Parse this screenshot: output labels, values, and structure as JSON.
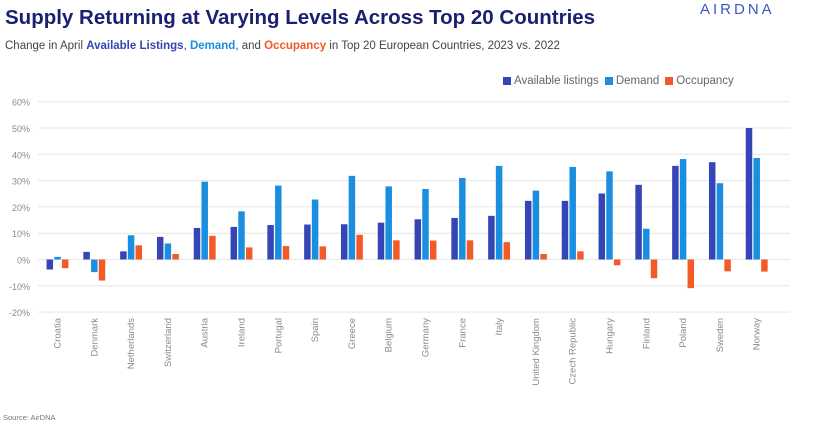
{
  "header": {
    "title": "Supply Returning at Varying Levels Across Top 20 Countries",
    "brand": "AIRDNA",
    "subtitle_prefix": "Change in April ",
    "subtitle_listings": "Available Listings",
    "subtitle_sep1": ", ",
    "subtitle_demand": "Demand",
    "subtitle_sep2": ", and ",
    "subtitle_occupancy": "Occupancy",
    "subtitle_suffix": " in Top 20 European Countries, 2023 vs. 2022"
  },
  "legend": {
    "listings": "Available listings",
    "demand": "Demand",
    "occupancy": "Occupancy"
  },
  "source": "Source: AirDNA",
  "colors": {
    "listings": "#3645b5",
    "demand": "#1a8fe0",
    "occupancy": "#f45a28",
    "title": "#1a1f71",
    "grid": "#e6e6e6"
  },
  "chart_data": {
    "type": "bar",
    "ylim": [
      -20,
      60
    ],
    "yticks": [
      "-20%",
      "-10%",
      "0%",
      "10%",
      "20%",
      "30%",
      "40%",
      "50%",
      "60%"
    ],
    "legend_position": "top-right",
    "grid": true,
    "categories": [
      "Croatia",
      "Denmark",
      "Netherlands",
      "Switzerland",
      "Austria",
      "Ireland",
      "Portugal",
      "Spain",
      "Greece",
      "Belgium",
      "Germany",
      "France",
      "Italy",
      "United Kingdom",
      "Czech Republic",
      "Hungary",
      "Finland",
      "Poland",
      "Sweden",
      "Norway"
    ],
    "series": [
      {
        "name": "Available listings",
        "values": [
          -3.8,
          2.9,
          3.1,
          8.6,
          12.0,
          12.4,
          13.1,
          13.3,
          13.4,
          14.0,
          15.3,
          15.8,
          16.6,
          22.3,
          22.3,
          25.1,
          28.4,
          35.6,
          37.0,
          50.0
        ]
      },
      {
        "name": "Demand",
        "values": [
          1.0,
          -4.8,
          9.2,
          6.1,
          29.6,
          18.3,
          28.1,
          22.8,
          31.8,
          27.8,
          26.8,
          31.0,
          35.6,
          26.2,
          35.2,
          33.5,
          11.7,
          38.2,
          29.0,
          38.6
        ]
      },
      {
        "name": "Occupancy",
        "values": [
          -3.3,
          -8.0,
          5.4,
          2.1,
          9.0,
          4.6,
          5.1,
          5.0,
          9.4,
          7.3,
          7.2,
          7.3,
          6.6,
          2.1,
          3.1,
          -2.2,
          -7.1,
          -10.9,
          -4.5,
          -4.6
        ]
      }
    ]
  }
}
